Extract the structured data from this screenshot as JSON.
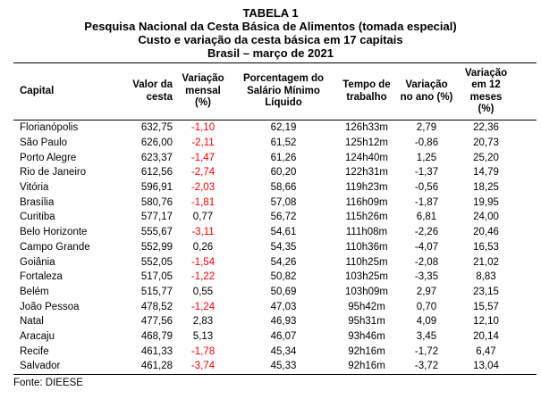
{
  "title": {
    "line1": "TABELA 1",
    "line2": "Pesquisa Nacional da Cesta Básica de Alimentos (tomada especial)",
    "line3": "Custo e variação da cesta básica em 17 capitais",
    "line4": "Brasil – março de 2021"
  },
  "colors": {
    "negative_value": "#FF0000",
    "text": "#000000"
  },
  "table": {
    "columns": [
      {
        "key": "capital",
        "label": "Capital"
      },
      {
        "key": "valor",
        "label": "Valor da\ncesta"
      },
      {
        "key": "mensal",
        "label": "Variação\nmensal (%)"
      },
      {
        "key": "pct",
        "label": "Porcentagem do\nSalário Mínimo\nLíquido"
      },
      {
        "key": "tempo",
        "label": "Tempo de\ntrabalho"
      },
      {
        "key": "ano",
        "label": "Variação\nno ano (%)"
      },
      {
        "key": "doze",
        "label": "Variação\nem 12\nmeses\n(%)"
      }
    ],
    "rows": [
      {
        "capital": "Florianópolis",
        "valor": "632,75",
        "mensal": "-1,10",
        "mensal_negative": true,
        "pct": "62,19",
        "tempo": "126h33m",
        "ano": "2,79",
        "doze": "22,36"
      },
      {
        "capital": "São Paulo",
        "valor": "626,00",
        "mensal": "-2,11",
        "mensal_negative": true,
        "pct": "61,52",
        "tempo": "125h12m",
        "ano": "-0,86",
        "doze": "20,73"
      },
      {
        "capital": "Porto Alegre",
        "valor": "623,37",
        "mensal": "-1,47",
        "mensal_negative": true,
        "pct": "61,26",
        "tempo": "124h40m",
        "ano": "1,25",
        "doze": "25,20"
      },
      {
        "capital": "Rio de Janeiro",
        "valor": "612,56",
        "mensal": "-2,74",
        "mensal_negative": true,
        "pct": "60,20",
        "tempo": "122h31m",
        "ano": "-1,37",
        "doze": "14,79"
      },
      {
        "capital": "Vitória",
        "valor": "596,91",
        "mensal": "-2,03",
        "mensal_negative": true,
        "pct": "58,66",
        "tempo": "119h23m",
        "ano": "-0,56",
        "doze": "18,25"
      },
      {
        "capital": "Brasília",
        "valor": "580,76",
        "mensal": "-1,81",
        "mensal_negative": true,
        "pct": "57,08",
        "tempo": "116h09m",
        "ano": "-1,87",
        "doze": "19,95"
      },
      {
        "capital": "Curitiba",
        "valor": "577,17",
        "mensal": "0,77",
        "mensal_negative": false,
        "pct": "56,72",
        "tempo": "115h26m",
        "ano": "6,81",
        "doze": "24,00"
      },
      {
        "capital": "Belo Horizonte",
        "valor": "555,67",
        "mensal": "-3,11",
        "mensal_negative": true,
        "pct": "54,61",
        "tempo": "111h08m",
        "ano": "-2,26",
        "doze": "20,46"
      },
      {
        "capital": "Campo Grande",
        "valor": "552,99",
        "mensal": "0,26",
        "mensal_negative": false,
        "pct": "54,35",
        "tempo": "110h36m",
        "ano": "-4,07",
        "doze": "16,53"
      },
      {
        "capital": "Goiânia",
        "valor": "552,05",
        "mensal": "-1,54",
        "mensal_negative": true,
        "pct": "54,26",
        "tempo": "110h25m",
        "ano": "-2,08",
        "doze": "21,02"
      },
      {
        "capital": "Fortaleza",
        "valor": "517,05",
        "mensal": "-1,22",
        "mensal_negative": true,
        "pct": "50,82",
        "tempo": "103h25m",
        "ano": "-3,35",
        "doze": "8,83"
      },
      {
        "capital": "Belém",
        "valor": "515,77",
        "mensal": "0,55",
        "mensal_negative": false,
        "pct": "50,69",
        "tempo": "103h09m",
        "ano": "2,97",
        "doze": "23,15"
      },
      {
        "capital": "João Pessoa",
        "valor": "478,52",
        "mensal": "-1,24",
        "mensal_negative": true,
        "pct": "47,03",
        "tempo": "95h42m",
        "ano": "0,70",
        "doze": "15,57"
      },
      {
        "capital": "Natal",
        "valor": "477,56",
        "mensal": "2,83",
        "mensal_negative": false,
        "pct": "46,93",
        "tempo": "95h31m",
        "ano": "4,09",
        "doze": "12,10"
      },
      {
        "capital": "Aracaju",
        "valor": "468,79",
        "mensal": "5,13",
        "mensal_negative": false,
        "pct": "46,07",
        "tempo": "93h46m",
        "ano": "3,45",
        "doze": "20,14"
      },
      {
        "capital": "Recife",
        "valor": "461,33",
        "mensal": "-1,78",
        "mensal_negative": true,
        "pct": "45,34",
        "tempo": "92h16m",
        "ano": "-1,72",
        "doze": "6,47"
      },
      {
        "capital": "Salvador",
        "valor": "461,28",
        "mensal": "-3,74",
        "mensal_negative": true,
        "pct": "45,33",
        "tempo": "92h16m",
        "ano": "-3,72",
        "doze": "13,04"
      }
    ]
  },
  "footer": {
    "source": "Fonte: DIEESE"
  }
}
